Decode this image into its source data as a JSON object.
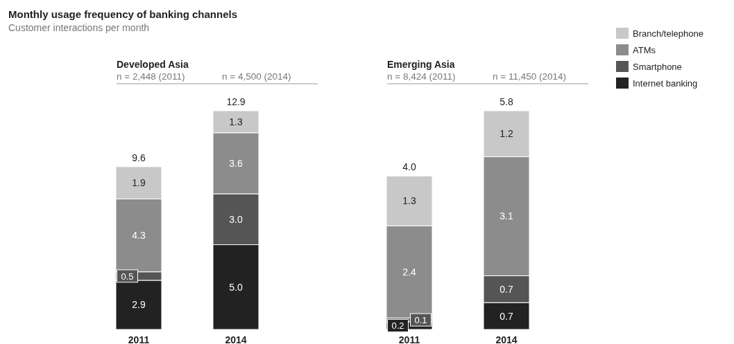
{
  "chart_data": [
    {
      "type": "other",
      "title": "Monthly usage frequency of banking channels",
      "subtitle": "Customer interactions per month"
    },
    {
      "type": "bar",
      "stacked": true,
      "title": "Developed Asia",
      "annotations": [
        "n = 2,448 (2011)",
        "n = 4,500 (2014)"
      ],
      "categories": [
        "2011",
        "2014"
      ],
      "totals": [
        "9.6",
        "12.9"
      ],
      "series": [
        {
          "color": "#222222",
          "values": [
            2.9,
            5.0
          ],
          "value_labels": [
            "2.9",
            "5.0"
          ]
        },
        {
          "color": "#555555",
          "values": [
            0.5,
            3.0
          ],
          "value_labels": [
            "0.5",
            "3.0"
          ]
        },
        {
          "color": "#8c8c8c",
          "values": [
            4.3,
            3.6
          ],
          "value_labels": [
            "4.3",
            "3.6"
          ]
        },
        {
          "color": "#c8c8c8",
          "values": [
            1.9,
            1.3
          ],
          "value_labels": [
            "1.9",
            "1.3"
          ]
        }
      ]
    },
    {
      "type": "bar",
      "stacked": true,
      "legend": "right",
      "title": "Emerging Asia",
      "annotations": [
        "n = 8,424 (2011)",
        "n = 11,450 (2014)"
      ],
      "categories": [
        "2011",
        "2014"
      ],
      "totals": [
        "4.0",
        "5.8"
      ],
      "series": [
        {
          "name": "Internet banking",
          "color": "#222222",
          "values": [
            0.2,
            0.7
          ],
          "value_labels": [
            "0.2",
            "0.7"
          ]
        },
        {
          "name": "Smartphone",
          "color": "#555555",
          "values": [
            0.1,
            0.7
          ],
          "value_labels": [
            "0.1",
            "0.7"
          ]
        },
        {
          "name": "ATMs",
          "color": "#8c8c8c",
          "values": [
            2.4,
            3.1
          ],
          "value_labels": [
            "2.4",
            "3.1"
          ]
        },
        {
          "name": "Branch/telephone",
          "color": "#c8c8c8",
          "values": [
            1.3,
            1.2
          ],
          "value_labels": [
            "1.3",
            "1.2"
          ]
        }
      ]
    }
  ]
}
